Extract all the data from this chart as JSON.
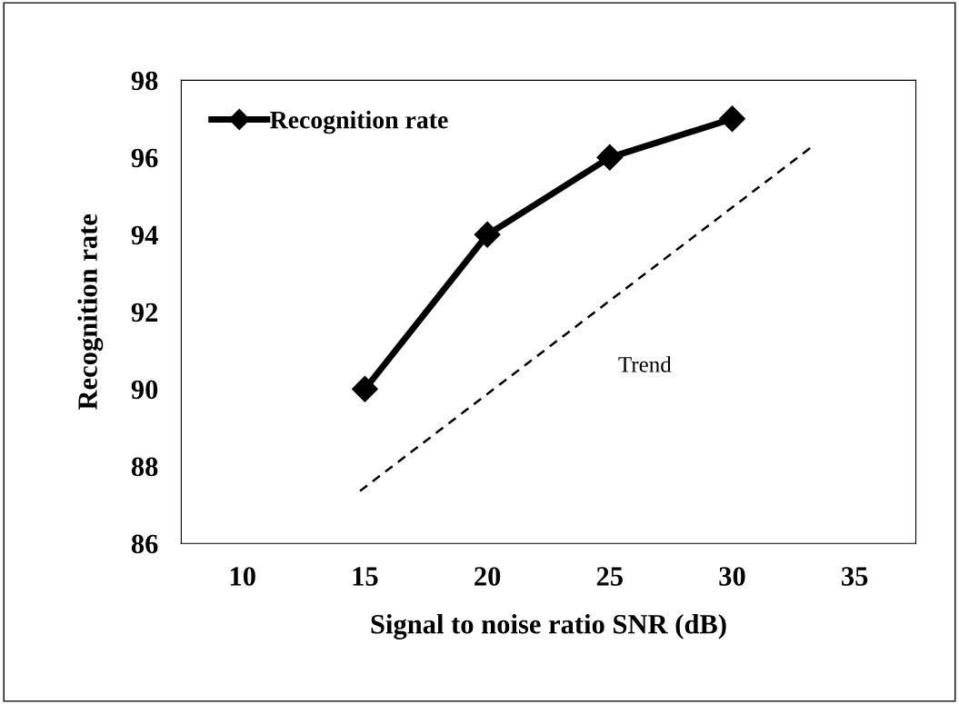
{
  "chart_data": {
    "type": "line",
    "xlabel": "Signal to noise ratio SNR (dB)",
    "ylabel": "Recognition rate",
    "xlim": [
      7.5,
      37.5
    ],
    "xticks": [
      10,
      15,
      20,
      25,
      30,
      35
    ],
    "ylim": [
      86,
      98
    ],
    "yticks": [
      86,
      88,
      90,
      92,
      94,
      96,
      98
    ],
    "grid": false,
    "legend": "top left",
    "marker": "diamond",
    "series": [
      {
        "name": "Recognition rate",
        "color": "#000000",
        "x": [
          15,
          20,
          25,
          30
        ],
        "values": [
          90,
          94,
          96,
          97
        ],
        "line_style": "solid"
      },
      {
        "name": "Trend",
        "color": "#000000",
        "x": [
          14.8,
          33.3
        ],
        "values": [
          87.36,
          96.3
        ],
        "line_style": "dashed",
        "marker": "none"
      }
    ]
  }
}
